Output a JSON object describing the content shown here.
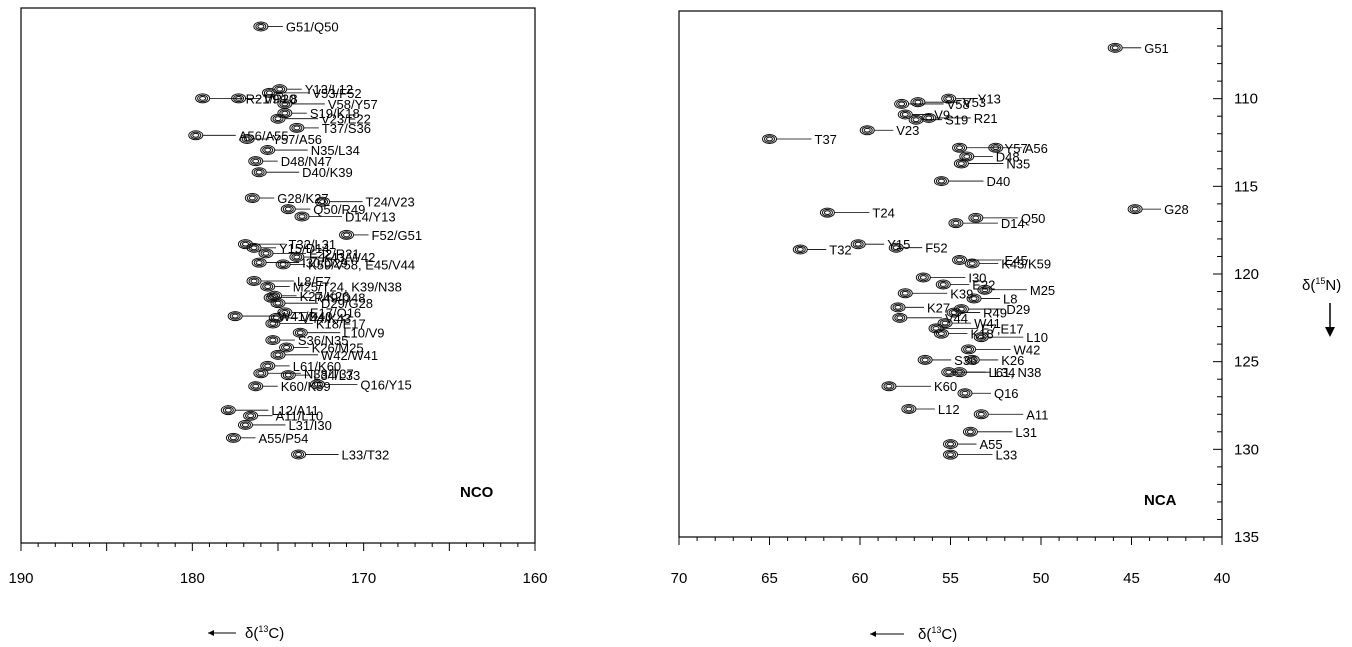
{
  "chart_data": [
    {
      "type": "scatter",
      "panel_label": "NCO",
      "xlabel_prefix": "δ(",
      "xlabel_sup": "13",
      "xlabel_suffix": "C)",
      "xlim": [
        190,
        160
      ],
      "ylim": [
        135,
        106
      ],
      "x_ticks": [
        190,
        180,
        170,
        160
      ],
      "peaks": [
        {
          "label": "G51/Q50",
          "x": 176.0,
          "y": 107.0
        },
        {
          "label": "V53/F52",
          "x": 175.5,
          "y": 110.6
        },
        {
          "label": "Y13/L12",
          "x": 174.9,
          "y": 110.4
        },
        {
          "label": "V58/Y57",
          "x": 174.6,
          "y": 111.2
        },
        {
          "label": "V9/L8",
          "x": 177.3,
          "y": 110.9
        },
        {
          "label": "R21/P20",
          "x": 179.4,
          "y": 110.9
        },
        {
          "label": "S19/K18",
          "x": 174.6,
          "y": 111.7
        },
        {
          "label": "V23/E22",
          "x": 175.0,
          "y": 112.0
        },
        {
          "label": "T37/S36",
          "x": 173.9,
          "y": 112.5
        },
        {
          "label": "A56/A55",
          "x": 179.8,
          "y": 112.9
        },
        {
          "label": "Y57/A56",
          "x": 176.8,
          "y": 113.1
        },
        {
          "label": "N35/L34",
          "x": 175.6,
          "y": 113.7
        },
        {
          "label": "D48/N47",
          "x": 176.3,
          "y": 114.3
        },
        {
          "label": "D40/K39",
          "x": 176.1,
          "y": 114.9
        },
        {
          "label": "G28/K27",
          "x": 176.5,
          "y": 116.3
        },
        {
          "label": "T24/V23",
          "x": 172.4,
          "y": 116.5
        },
        {
          "label": "Q50/R49",
          "x": 174.4,
          "y": 116.9
        },
        {
          "label": "D14/Y13",
          "x": 173.6,
          "y": 117.3
        },
        {
          "label": "F52/G51",
          "x": 171.0,
          "y": 118.3
        },
        {
          "label": "T32/L31",
          "x": 176.9,
          "y": 118.8
        },
        {
          "label": "Y15/D14",
          "x": 176.4,
          "y": 119.0
        },
        {
          "label": "E22/R21",
          "x": 175.7,
          "y": 119.3
        },
        {
          "label": "K43/W42",
          "x": 173.9,
          "y": 119.5
        },
        {
          "label": "I30/D29",
          "x": 176.1,
          "y": 119.8
        },
        {
          "label": "K59/V58, E45/V44",
          "x": 174.7,
          "y": 119.9
        },
        {
          "label": "L8/E7",
          "x": 176.4,
          "y": 120.8
        },
        {
          "label": "M25/T24, K39/N38",
          "x": 175.6,
          "y": 121.1
        },
        {
          "label": "R49/D48",
          "x": 175.4,
          "y": 121.7
        },
        {
          "label": "K27/K26",
          "x": 175.2,
          "y": 121.6
        },
        {
          "label": "D29/G28",
          "x": 175.0,
          "y": 122.0
        },
        {
          "label": "E17/Q16",
          "x": 174.6,
          "y": 122.5
        },
        {
          "label": "W41/D40",
          "x": 177.5,
          "y": 122.7
        },
        {
          "label": "V44/K43",
          "x": 175.1,
          "y": 122.8
        },
        {
          "label": "K18/E17",
          "x": 175.3,
          "y": 123.1
        },
        {
          "label": "S36/N35",
          "x": 175.3,
          "y": 124.0
        },
        {
          "label": "L10/V9",
          "x": 173.7,
          "y": 123.6
        },
        {
          "label": "K26/M25",
          "x": 174.5,
          "y": 124.4
        },
        {
          "label": "W42/W41",
          "x": 175.0,
          "y": 124.8
        },
        {
          "label": "L61/K60",
          "x": 175.6,
          "y": 125.4
        },
        {
          "label": "N38/T37",
          "x": 176.0,
          "y": 125.8
        },
        {
          "label": "L34/L33",
          "x": 174.4,
          "y": 125.9
        },
        {
          "label": "Q16/Y15",
          "x": 172.7,
          "y": 126.4
        },
        {
          "label": "K60/K59",
          "x": 176.3,
          "y": 126.5
        },
        {
          "label": "L12/A11",
          "x": 177.9,
          "y": 127.8
        },
        {
          "label": "A11/L10",
          "x": 176.6,
          "y": 128.1
        },
        {
          "label": "L31/I30",
          "x": 176.9,
          "y": 128.6
        },
        {
          "label": "A55/P54",
          "x": 177.6,
          "y": 129.3
        },
        {
          "label": "L33/T32",
          "x": 173.8,
          "y": 130.2
        }
      ]
    },
    {
      "type": "scatter",
      "panel_label": "NCA",
      "xlabel_prefix": "δ(",
      "xlabel_sup": "13",
      "xlabel_suffix": "C)",
      "ylabel_prefix": "δ(",
      "ylabel_sup": "15",
      "ylabel_suffix": "N)",
      "xlim": [
        70,
        40
      ],
      "ylim": [
        135,
        105
      ],
      "x_ticks": [
        70,
        65,
        60,
        55,
        50,
        45,
        40
      ],
      "y_ticks": [
        110,
        115,
        120,
        125,
        130,
        135
      ],
      "peaks": [
        {
          "label": "G51",
          "x": 45.9,
          "y": 107.1
        },
        {
          "label": "V53",
          "x": 56.8,
          "y": 110.2
        },
        {
          "label": "Y13",
          "x": 55.1,
          "y": 110.0
        },
        {
          "label": "V58",
          "x": 57.7,
          "y": 110.3
        },
        {
          "label": "V9",
          "x": 57.5,
          "y": 110.9
        },
        {
          "label": "R21",
          "x": 56.2,
          "y": 111.1
        },
        {
          "label": "V23",
          "x": 59.6,
          "y": 111.8
        },
        {
          "label": "T37",
          "x": 65.0,
          "y": 112.3
        },
        {
          "label": "S19",
          "x": 56.9,
          "y": 111.2
        },
        {
          "label": "Y57",
          "x": 54.5,
          "y": 112.8
        },
        {
          "label": "A56",
          "x": 52.5,
          "y": 112.8
        },
        {
          "label": "N35",
          "x": 54.4,
          "y": 113.7
        },
        {
          "label": "D48",
          "x": 54.1,
          "y": 113.3
        },
        {
          "label": "D40",
          "x": 55.5,
          "y": 114.7
        },
        {
          "label": "Y15",
          "x": 60.1,
          "y": 118.3
        },
        {
          "label": "T24",
          "x": 61.8,
          "y": 116.5
        },
        {
          "label": "F52",
          "x": 58.0,
          "y": 118.5
        },
        {
          "label": "Q50",
          "x": 53.6,
          "y": 116.8
        },
        {
          "label": "G28",
          "x": 44.8,
          "y": 116.3
        },
        {
          "label": "D14",
          "x": 54.7,
          "y": 117.1
        },
        {
          "label": "T32",
          "x": 63.3,
          "y": 118.6
        },
        {
          "label": "E45",
          "x": 54.5,
          "y": 119.2
        },
        {
          "label": "K43/K59",
          "x": 53.8,
          "y": 119.4
        },
        {
          "label": "I30",
          "x": 56.5,
          "y": 120.2
        },
        {
          "label": "E22",
          "x": 55.4,
          "y": 120.6
        },
        {
          "label": "M25",
          "x": 53.1,
          "y": 120.9
        },
        {
          "label": "L8",
          "x": 53.7,
          "y": 121.4
        },
        {
          "label": "K39",
          "x": 57.5,
          "y": 121.1
        },
        {
          "label": "K27",
          "x": 57.9,
          "y": 121.9
        },
        {
          "label": "D29",
          "x": 54.4,
          "y": 122.0
        },
        {
          "label": "R49",
          "x": 54.8,
          "y": 122.2
        },
        {
          "label": "V44",
          "x": 57.8,
          "y": 122.5
        },
        {
          "label": "W41",
          "x": 55.3,
          "y": 122.8
        },
        {
          "label": "E7,E17",
          "x": 55.8,
          "y": 123.1
        },
        {
          "label": "K18",
          "x": 55.5,
          "y": 123.4
        },
        {
          "label": "L10",
          "x": 53.3,
          "y": 123.6
        },
        {
          "label": "S36",
          "x": 56.4,
          "y": 124.9
        },
        {
          "label": "W42",
          "x": 54.0,
          "y": 124.3
        },
        {
          "label": "K26",
          "x": 53.8,
          "y": 124.9
        },
        {
          "label": "L34",
          "x": 55.1,
          "y": 125.6
        },
        {
          "label": "L61, N38",
          "x": 54.5,
          "y": 125.6
        },
        {
          "label": "K60",
          "x": 58.4,
          "y": 126.4
        },
        {
          "label": "Q16",
          "x": 54.2,
          "y": 126.8
        },
        {
          "label": "A11",
          "x": 53.3,
          "y": 128.0
        },
        {
          "label": "L12",
          "x": 57.3,
          "y": 127.7
        },
        {
          "label": "L31",
          "x": 53.9,
          "y": 129.0
        },
        {
          "label": "A55",
          "x": 55.0,
          "y": 129.7
        },
        {
          "label": "L33",
          "x": 55.0,
          "y": 130.3
        }
      ]
    }
  ]
}
